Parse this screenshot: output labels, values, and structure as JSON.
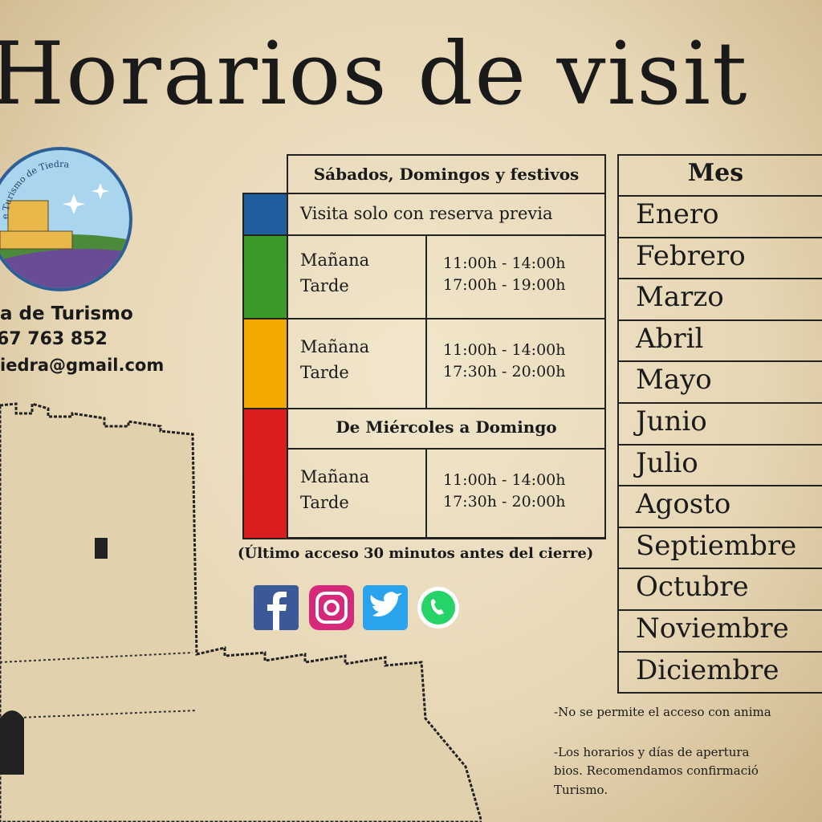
{
  "header": {
    "title": "Horarios de visit"
  },
  "office": {
    "logo_text": "e Turismo de Tiedra",
    "name": "a de Turismo",
    "phone": "67 763 852",
    "email": "iedra@gmail.com"
  },
  "schedule": {
    "heading": "Sábados, Domingos y festivos",
    "rows": [
      {
        "color": "#1f5fa0",
        "text": "Visita solo con reserva previa"
      },
      {
        "color": "#3a9a2a",
        "morning": "Mañana",
        "afternoon": "Tarde",
        "morning_hours": "11:00h - 14:00h",
        "afternoon_hours": "17:00h - 19:00h"
      },
      {
        "color": "#f2a900",
        "morning": "Mañana",
        "afternoon": "Tarde",
        "morning_hours": "11:00h - 14:00h",
        "afternoon_hours": "17:30h - 20:00h"
      },
      {
        "color": "#d81e1e",
        "subheading": "De Miércoles a Domingo",
        "morning": "Mañana",
        "afternoon": "Tarde",
        "morning_hours": "11:00h - 14:00h",
        "afternoon_hours": "17:30h - 20:00h"
      }
    ],
    "note": "(Último acceso 30 minutos antes del cierre)"
  },
  "months": {
    "heading": "Mes",
    "items": [
      "Enero",
      "Febrero",
      "Marzo",
      "Abril",
      "Mayo",
      "Junio",
      "Julio",
      "Agosto",
      "Septiembre",
      "Octubre",
      "Noviembre",
      "Diciembre"
    ]
  },
  "footnotes": [
    "-No se permite el acceso con anima",
    "-Los horarios y días de apertura",
    "bios. Recomendamos confirmació",
    "Turismo."
  ]
}
